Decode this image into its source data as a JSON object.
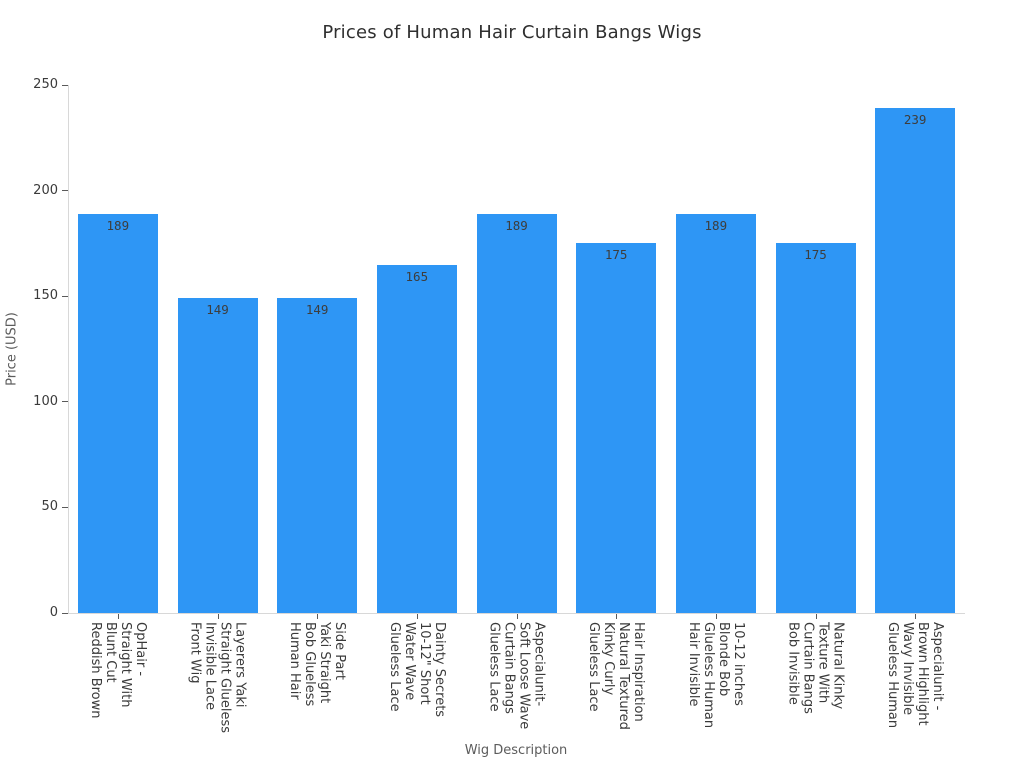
{
  "chart_data": {
    "type": "bar",
    "title": "Prices of Human Hair Curtain Bangs Wigs",
    "xlabel": "Wig Description",
    "ylabel": "Price (USD)",
    "ylim": [
      0,
      250
    ],
    "yticks": [
      0,
      50,
      100,
      150,
      200,
      250
    ],
    "grid": "off",
    "legend": "none",
    "bar_color": "#2e96f5",
    "value_label_position": "inside-top",
    "x_label_rotation_deg": 90,
    "categories": [
      "OpHair -\nStraight With\nBlunt Cut\nReddish Brown",
      "Layerers Yaki\nStraight Glueless\nInvisible Lace\nFront Wig",
      "Side Part\nYaki Straight\nBob Glueless\nHuman Hair",
      "Dainty Secrets\n10-12\" Short\nWater Wave\nGlueless Lace",
      "Aspecialunit-\nSoft Loose Wave\nCurtain Bangs\nGlueless Lace",
      "Hair Inspiration\nNatural Textured\nKinky Curly\nGlueless Lace",
      "10-12 inches\nBlonde Bob\nGlueless Human\nHair Invisible",
      "Natural Kinky\nTexture With\nCurtain Bangs\nBob Invisible",
      "Aspecialunit -\nBrown Highlight\nWavy Invisible\nGlueless Human"
    ],
    "values": [
      189,
      149,
      149,
      165,
      189,
      175,
      189,
      175,
      239
    ]
  }
}
